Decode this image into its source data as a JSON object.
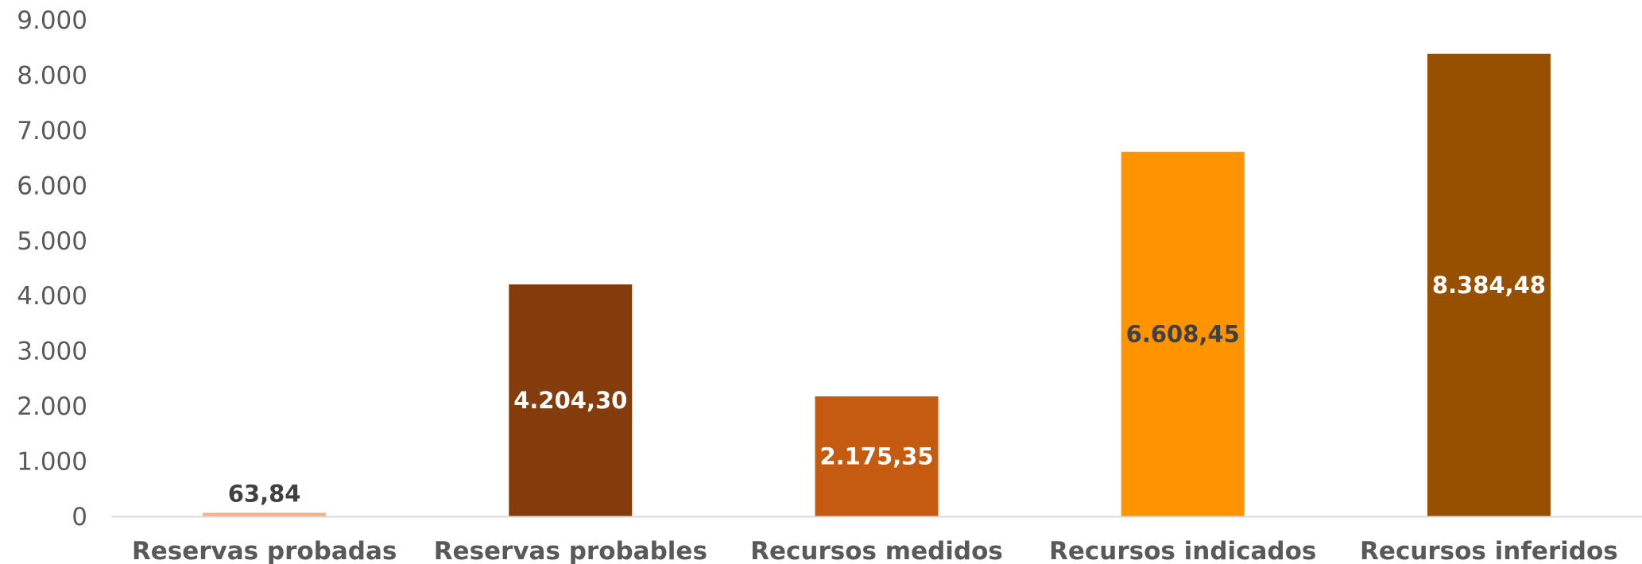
{
  "chart_data": {
    "type": "bar",
    "categories": [
      "Reservas probadas",
      "Reservas probables",
      "Recursos medidos",
      "Recursos indicados",
      "Recursos inferidos"
    ],
    "values": [
      63.84,
      4204.3,
      2175.35,
      6608.45,
      8384.48
    ],
    "data_labels": [
      "63,84",
      "4.204,30",
      "2.175,35",
      "6.608,45",
      "8.384,48"
    ],
    "bar_colors": [
      "#F4B183",
      "#843C0C",
      "#C55A11",
      "#FF9300",
      "#974F00"
    ],
    "label_colors": [
      "#404040",
      "#FFFFFF",
      "#FFFFFF",
      "#404040",
      "#FFFFFF"
    ],
    "label_position": [
      "outside",
      "center",
      "center",
      "center",
      "center"
    ],
    "y_ticks": [
      0,
      1000,
      2000,
      3000,
      4000,
      5000,
      6000,
      7000,
      8000,
      9000
    ],
    "y_tick_labels": [
      "0",
      "1.000",
      "2.000",
      "3.000",
      "4.000",
      "5.000",
      "6.000",
      "7.000",
      "8.000",
      "9.000"
    ],
    "ylim": [
      0,
      9000
    ],
    "grid": false,
    "legend": "none",
    "axis_color": "#D9D9D9"
  }
}
